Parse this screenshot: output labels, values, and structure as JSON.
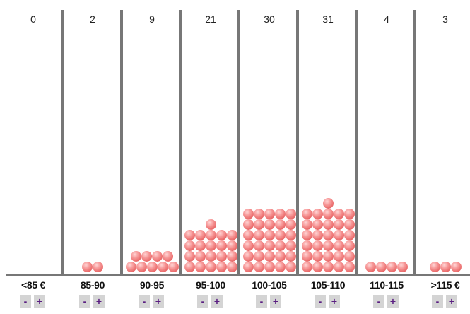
{
  "histogram": {
    "ball_color": "#f08080",
    "divider_color": "#777777",
    "button_bg": "#d4d4d4",
    "button_text_color": "#5a1e82",
    "bins": [
      {
        "label": "<85 €",
        "count": "0",
        "minus": "-",
        "plus": "+"
      },
      {
        "label": "85-90",
        "count": "2",
        "minus": "-",
        "plus": "+"
      },
      {
        "label": "90-95",
        "count": "9",
        "minus": "-",
        "plus": "+"
      },
      {
        "label": "95-100",
        "count": "21",
        "minus": "-",
        "plus": "+"
      },
      {
        "label": "100-105",
        "count": "30",
        "minus": "-",
        "plus": "+"
      },
      {
        "label": "105-110",
        "count": "31",
        "minus": "-",
        "plus": "+"
      },
      {
        "label": "110-115",
        "count": "4",
        "minus": "-",
        "plus": "+"
      },
      {
        "label": ">115 €",
        "count": "3",
        "minus": "-",
        "plus": "+"
      }
    ]
  }
}
